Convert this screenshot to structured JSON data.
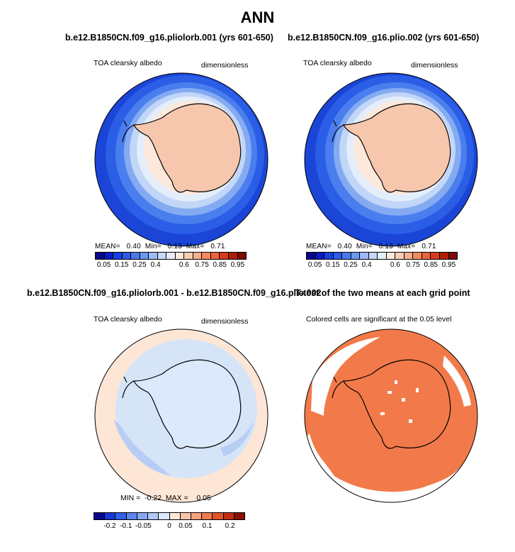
{
  "title": "ANN",
  "panels": {
    "top_left": {
      "title": "b.e12.B1850CN.f09_g16.pliolorb.001 (yrs 601-650)",
      "variable": "TOA clearsky albedo",
      "units": "dimensionless",
      "stats": {
        "mean_label": "MEAN=",
        "mean": "0.40",
        "min_label": "Min=",
        "min": "0.13",
        "max_label": "Max=",
        "max": "0.71"
      }
    },
    "top_right": {
      "title": "b.e12.B1850CN.f09_g16.plio.002 (yrs 601-650)",
      "variable": "TOA clearsky albedo",
      "units": "dimensionless",
      "stats": {
        "mean_label": "MEAN=",
        "mean": "0.40",
        "min_label": "Min=",
        "min": "0.13",
        "max_label": "Max=",
        "max": "0.71"
      }
    },
    "bottom_left": {
      "title": "b.e12.B1850CN.f09_g16.pliolorb.001 - b.e12.B1850CN.f09_g16.plio.002",
      "variable": "TOA clearsky albedo",
      "units": "dimensionless",
      "stats": {
        "min_label": "MIN =",
        "min": "-0.22",
        "max_label": "MAX =",
        "max": "0.05"
      }
    },
    "bottom_right": {
      "title": "T-test of the two means at each grid point",
      "note": "Colored cells are significant at the 0.05 level"
    }
  },
  "colorbars": {
    "absolute": {
      "colors": [
        "#08088c",
        "#0a1bc4",
        "#1640e0",
        "#2d5ae8",
        "#4a78ec",
        "#6e98f0",
        "#9cbaf4",
        "#c6d8f8",
        "#e4eefb",
        "#fde9dc",
        "#f9cdb4",
        "#f6ae8c",
        "#f28a62",
        "#ec6438",
        "#d83a1c",
        "#b01e08",
        "#7a0c04"
      ],
      "ticks": [
        "0.05",
        "0.15",
        "0.25",
        "0.4",
        "0.6",
        "0.75",
        "0.85",
        "0.95"
      ]
    },
    "difference": {
      "colors": [
        "#08088c",
        "#1a34d8",
        "#3060e6",
        "#5a86ee",
        "#86a8f2",
        "#b2c8f6",
        "#dce8fb",
        "#fde8da",
        "#f8c4a8",
        "#f3a07c",
        "#ee7a50",
        "#e05428",
        "#c02e10",
        "#8c1004"
      ],
      "ticks": [
        "-0.2",
        "-0.1",
        "-0.05",
        "0",
        "0.05",
        "0.1",
        "0.2"
      ]
    }
  },
  "map_colors": {
    "land": "#f6c7ad",
    "ocean_low": "#1a45d6",
    "diff_background": "#fde6d6",
    "diff_negative": "#d6e4f8",
    "significant": "#f27a4a",
    "coastline": "#000000"
  }
}
